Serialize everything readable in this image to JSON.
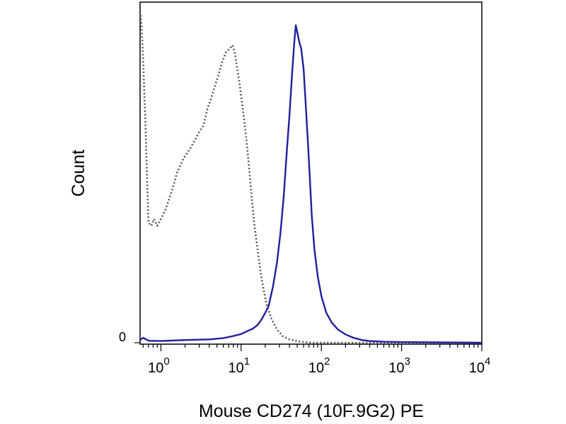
{
  "chart_data": {
    "type": "line",
    "title": "",
    "xlabel": "Mouse CD274 (10F.9G2) PE",
    "ylabel": "Count",
    "x_scale": "log",
    "xlim": [
      0.55,
      10000
    ],
    "ylim": [
      0,
      100
    ],
    "x_ticks": [
      {
        "value": 1,
        "base": "10",
        "exp": "0"
      },
      {
        "value": 10,
        "base": "10",
        "exp": "1"
      },
      {
        "value": 100,
        "base": "10",
        "exp": "2"
      },
      {
        "value": 1000,
        "base": "10",
        "exp": "3"
      },
      {
        "value": 10000,
        "base": "10",
        "exp": "4"
      }
    ],
    "y_ticks": [
      {
        "value": 0,
        "label": "0"
      }
    ],
    "grid": false,
    "legend": "none",
    "series": [
      {
        "style": "dotted",
        "color": "#555555",
        "points": [
          [
            0.56,
            98
          ],
          [
            0.58,
            93
          ],
          [
            0.6,
            85
          ],
          [
            0.62,
            75
          ],
          [
            0.64,
            66
          ],
          [
            0.67,
            50
          ],
          [
            0.7,
            36
          ],
          [
            0.76,
            35
          ],
          [
            0.82,
            37
          ],
          [
            0.9,
            35
          ],
          [
            1.0,
            37
          ],
          [
            1.15,
            40
          ],
          [
            1.35,
            45
          ],
          [
            1.6,
            51
          ],
          [
            1.9,
            55
          ],
          [
            2.3,
            58
          ],
          [
            2.7,
            61
          ],
          [
            3.0,
            63
          ],
          [
            3.4,
            65
          ],
          [
            3.8,
            70
          ],
          [
            4.2,
            73
          ],
          [
            4.6,
            76
          ],
          [
            5.2,
            80
          ],
          [
            5.8,
            84
          ],
          [
            6.5,
            87
          ],
          [
            7.2,
            88
          ],
          [
            7.8,
            89
          ],
          [
            8.3,
            87
          ],
          [
            8.8,
            83
          ],
          [
            9.5,
            78
          ],
          [
            10.5,
            70
          ],
          [
            11.5,
            62
          ],
          [
            12.5,
            53
          ],
          [
            13.5,
            44
          ],
          [
            14.5,
            36
          ],
          [
            16,
            28
          ],
          [
            17.5,
            21
          ],
          [
            19,
            16
          ],
          [
            21,
            11
          ],
          [
            24,
            7
          ],
          [
            28,
            4
          ],
          [
            33,
            2
          ],
          [
            40,
            1
          ],
          [
            55,
            0.3
          ],
          [
            80,
            0
          ],
          [
            10000,
            0
          ]
        ]
      },
      {
        "style": "solid",
        "color": "#1f1fa0",
        "points": [
          [
            0.55,
            0.8
          ],
          [
            0.6,
            1.5
          ],
          [
            0.7,
            0.6
          ],
          [
            1,
            0.5
          ],
          [
            2,
            0.8
          ],
          [
            4,
            1.0
          ],
          [
            6,
            1.4
          ],
          [
            8,
            2.0
          ],
          [
            10,
            2.6
          ],
          [
            12,
            3.5
          ],
          [
            14,
            4.2
          ],
          [
            16,
            5.3
          ],
          [
            18,
            7.0
          ],
          [
            20,
            9.0
          ],
          [
            22,
            11
          ],
          [
            25,
            17
          ],
          [
            28,
            24
          ],
          [
            31,
            33
          ],
          [
            34,
            44
          ],
          [
            37,
            57
          ],
          [
            40,
            68
          ],
          [
            43,
            80
          ],
          [
            46,
            90
          ],
          [
            48,
            95
          ],
          [
            50,
            93
          ],
          [
            53,
            90
          ],
          [
            56,
            88
          ],
          [
            60,
            82
          ],
          [
            64,
            71
          ],
          [
            68,
            60
          ],
          [
            72,
            49
          ],
          [
            76,
            38
          ],
          [
            82,
            28
          ],
          [
            90,
            20
          ],
          [
            100,
            14
          ],
          [
            115,
            9
          ],
          [
            135,
            6
          ],
          [
            160,
            4
          ],
          [
            200,
            2.5
          ],
          [
            250,
            1.5
          ],
          [
            320,
            0.8
          ],
          [
            400,
            0.5
          ],
          [
            600,
            0.3
          ],
          [
            1000,
            0.2
          ],
          [
            3000,
            0.1
          ],
          [
            10000,
            0
          ]
        ]
      }
    ]
  }
}
